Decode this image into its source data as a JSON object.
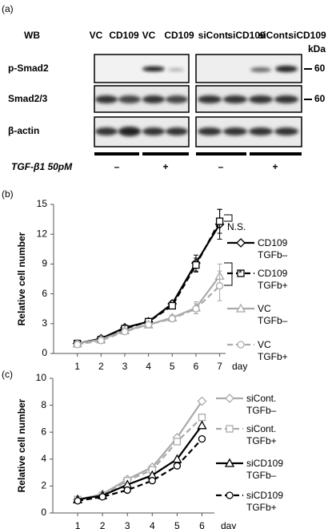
{
  "blot": {
    "panel": "(a)",
    "method": "WB",
    "lanes": [
      "VC",
      "CD109",
      "VC",
      "CD109",
      "siCont.",
      "siCD109",
      "siCont.",
      "siCD109"
    ],
    "rows": [
      "p-Smad2",
      "Smad2/3",
      "β-actin"
    ],
    "unit": "kDa",
    "sizes": [
      "60",
      "60"
    ],
    "treatment": "TGF-β1  50pM",
    "treatment_levels": [
      "–",
      "+",
      "–",
      "+"
    ]
  },
  "chart_data": [
    {
      "type": "line",
      "panel": "(b)",
      "ylabel": "Relative cell number",
      "xlabel": "day",
      "x": [
        1,
        2,
        3,
        4,
        5,
        6,
        7
      ],
      "xlim": [
        0,
        7.25
      ],
      "xticks": [
        1,
        2,
        3,
        4,
        5,
        6,
        7
      ],
      "ylim": [
        0,
        15
      ],
      "yticks": [
        0,
        3,
        6,
        9,
        12,
        15
      ],
      "series": [
        {
          "name": "CD109\nTGFb–",
          "color": "#000000",
          "dash": false,
          "marker": "diamond",
          "values": [
            1.0,
            1.5,
            2.6,
            3.2,
            5.0,
            9.1,
            13.0
          ],
          "errors": [
            0.1,
            0.1,
            0.2,
            0.2,
            0.3,
            0.8,
            1.5
          ]
        },
        {
          "name": "CD109\nTGFb+",
          "color": "#000000",
          "dash": true,
          "marker": "square",
          "values": [
            1.0,
            1.4,
            2.5,
            3.2,
            4.8,
            8.9,
            13.3
          ],
          "errors": [
            0.1,
            0.1,
            0.2,
            0.2,
            0.3,
            0.7,
            1.2
          ]
        },
        {
          "name": "VC\nTGFb–",
          "color": "#aaaaaa",
          "dash": false,
          "marker": "triangle",
          "values": [
            1.0,
            1.4,
            2.3,
            2.9,
            3.6,
            4.6,
            7.8
          ],
          "errors": [
            0.1,
            0.1,
            0.2,
            0.2,
            0.3,
            0.6,
            1.2
          ]
        },
        {
          "name": "VC\nTGFb+",
          "color": "#aaaaaa",
          "dash": true,
          "marker": "circle",
          "values": [
            0.9,
            1.3,
            2.2,
            2.9,
            3.5,
            4.5,
            6.8
          ],
          "errors": [
            0.1,
            0.1,
            0.2,
            0.2,
            0.3,
            0.5,
            1.5
          ]
        }
      ],
      "annotations": [
        "N.S.",
        "*"
      ]
    },
    {
      "type": "line",
      "panel": "(c)",
      "ylabel": "Relative cell number",
      "xlabel": "day",
      "x": [
        1,
        2,
        3,
        4,
        5,
        6
      ],
      "xlim": [
        0,
        6.5
      ],
      "xticks": [
        1,
        2,
        3,
        4,
        5,
        6
      ],
      "ylim": [
        0,
        10
      ],
      "yticks": [
        0,
        2,
        4,
        6,
        8,
        10
      ],
      "series": [
        {
          "name": "siCont.\nTGFb–",
          "color": "#aaaaaa",
          "dash": false,
          "marker": "diamond",
          "values": [
            1.0,
            1.4,
            2.5,
            3.4,
            5.6,
            8.3
          ]
        },
        {
          "name": "siCont.\nTGFb+",
          "color": "#aaaaaa",
          "dash": true,
          "marker": "square",
          "values": [
            1.0,
            1.3,
            2.4,
            3.2,
            5.3,
            7.1
          ]
        },
        {
          "name": "siCD109\nTGFb–",
          "color": "#000000",
          "dash": false,
          "marker": "triangle",
          "values": [
            1.0,
            1.3,
            2.1,
            2.8,
            4.0,
            6.5
          ]
        },
        {
          "name": "siCD109\nTGFb+",
          "color": "#000000",
          "dash": true,
          "marker": "circle",
          "values": [
            0.9,
            1.2,
            1.7,
            2.4,
            3.5,
            5.5
          ]
        }
      ]
    }
  ]
}
